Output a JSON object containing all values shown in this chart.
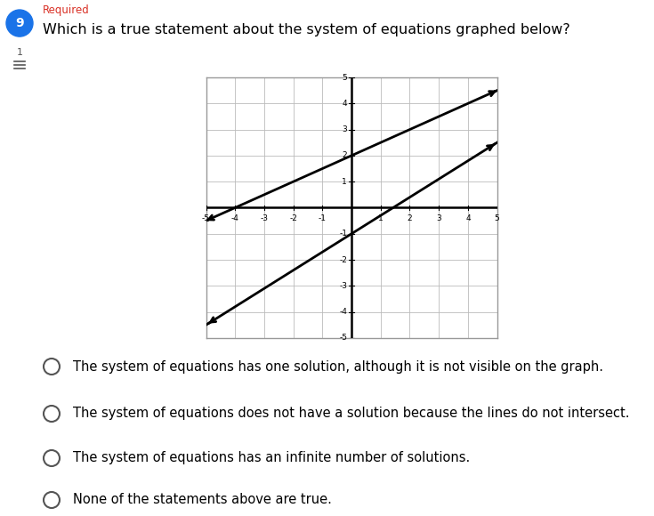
{
  "title": "Which is a true statement about the system of equations graphed below?",
  "required_label": "Required",
  "question_number": "9",
  "graph": {
    "xlim": [
      -5,
      5
    ],
    "ylim": [
      -5,
      5
    ],
    "line1": {
      "slope": 0.5,
      "intercept": 2,
      "color": "#000000"
    },
    "line2": {
      "slope": 0.7,
      "intercept": -1,
      "color": "#000000"
    },
    "grid_color": "#bbbbbb",
    "axis_color": "#000000",
    "background": "#ffffff",
    "border_color": "#999999"
  },
  "choices": [
    "The system of equations has one solution, although it is not visible on the graph.",
    "The system of equations does not have a solution because the lines do not intersect.",
    "The system of equations has an infinite number of solutions.",
    "None of the statements above are true."
  ],
  "header_bg": "#ffffff",
  "circle_color": "#1a73e8",
  "required_color": "#d93025",
  "text_color": "#000000",
  "radio_color": "#555555"
}
